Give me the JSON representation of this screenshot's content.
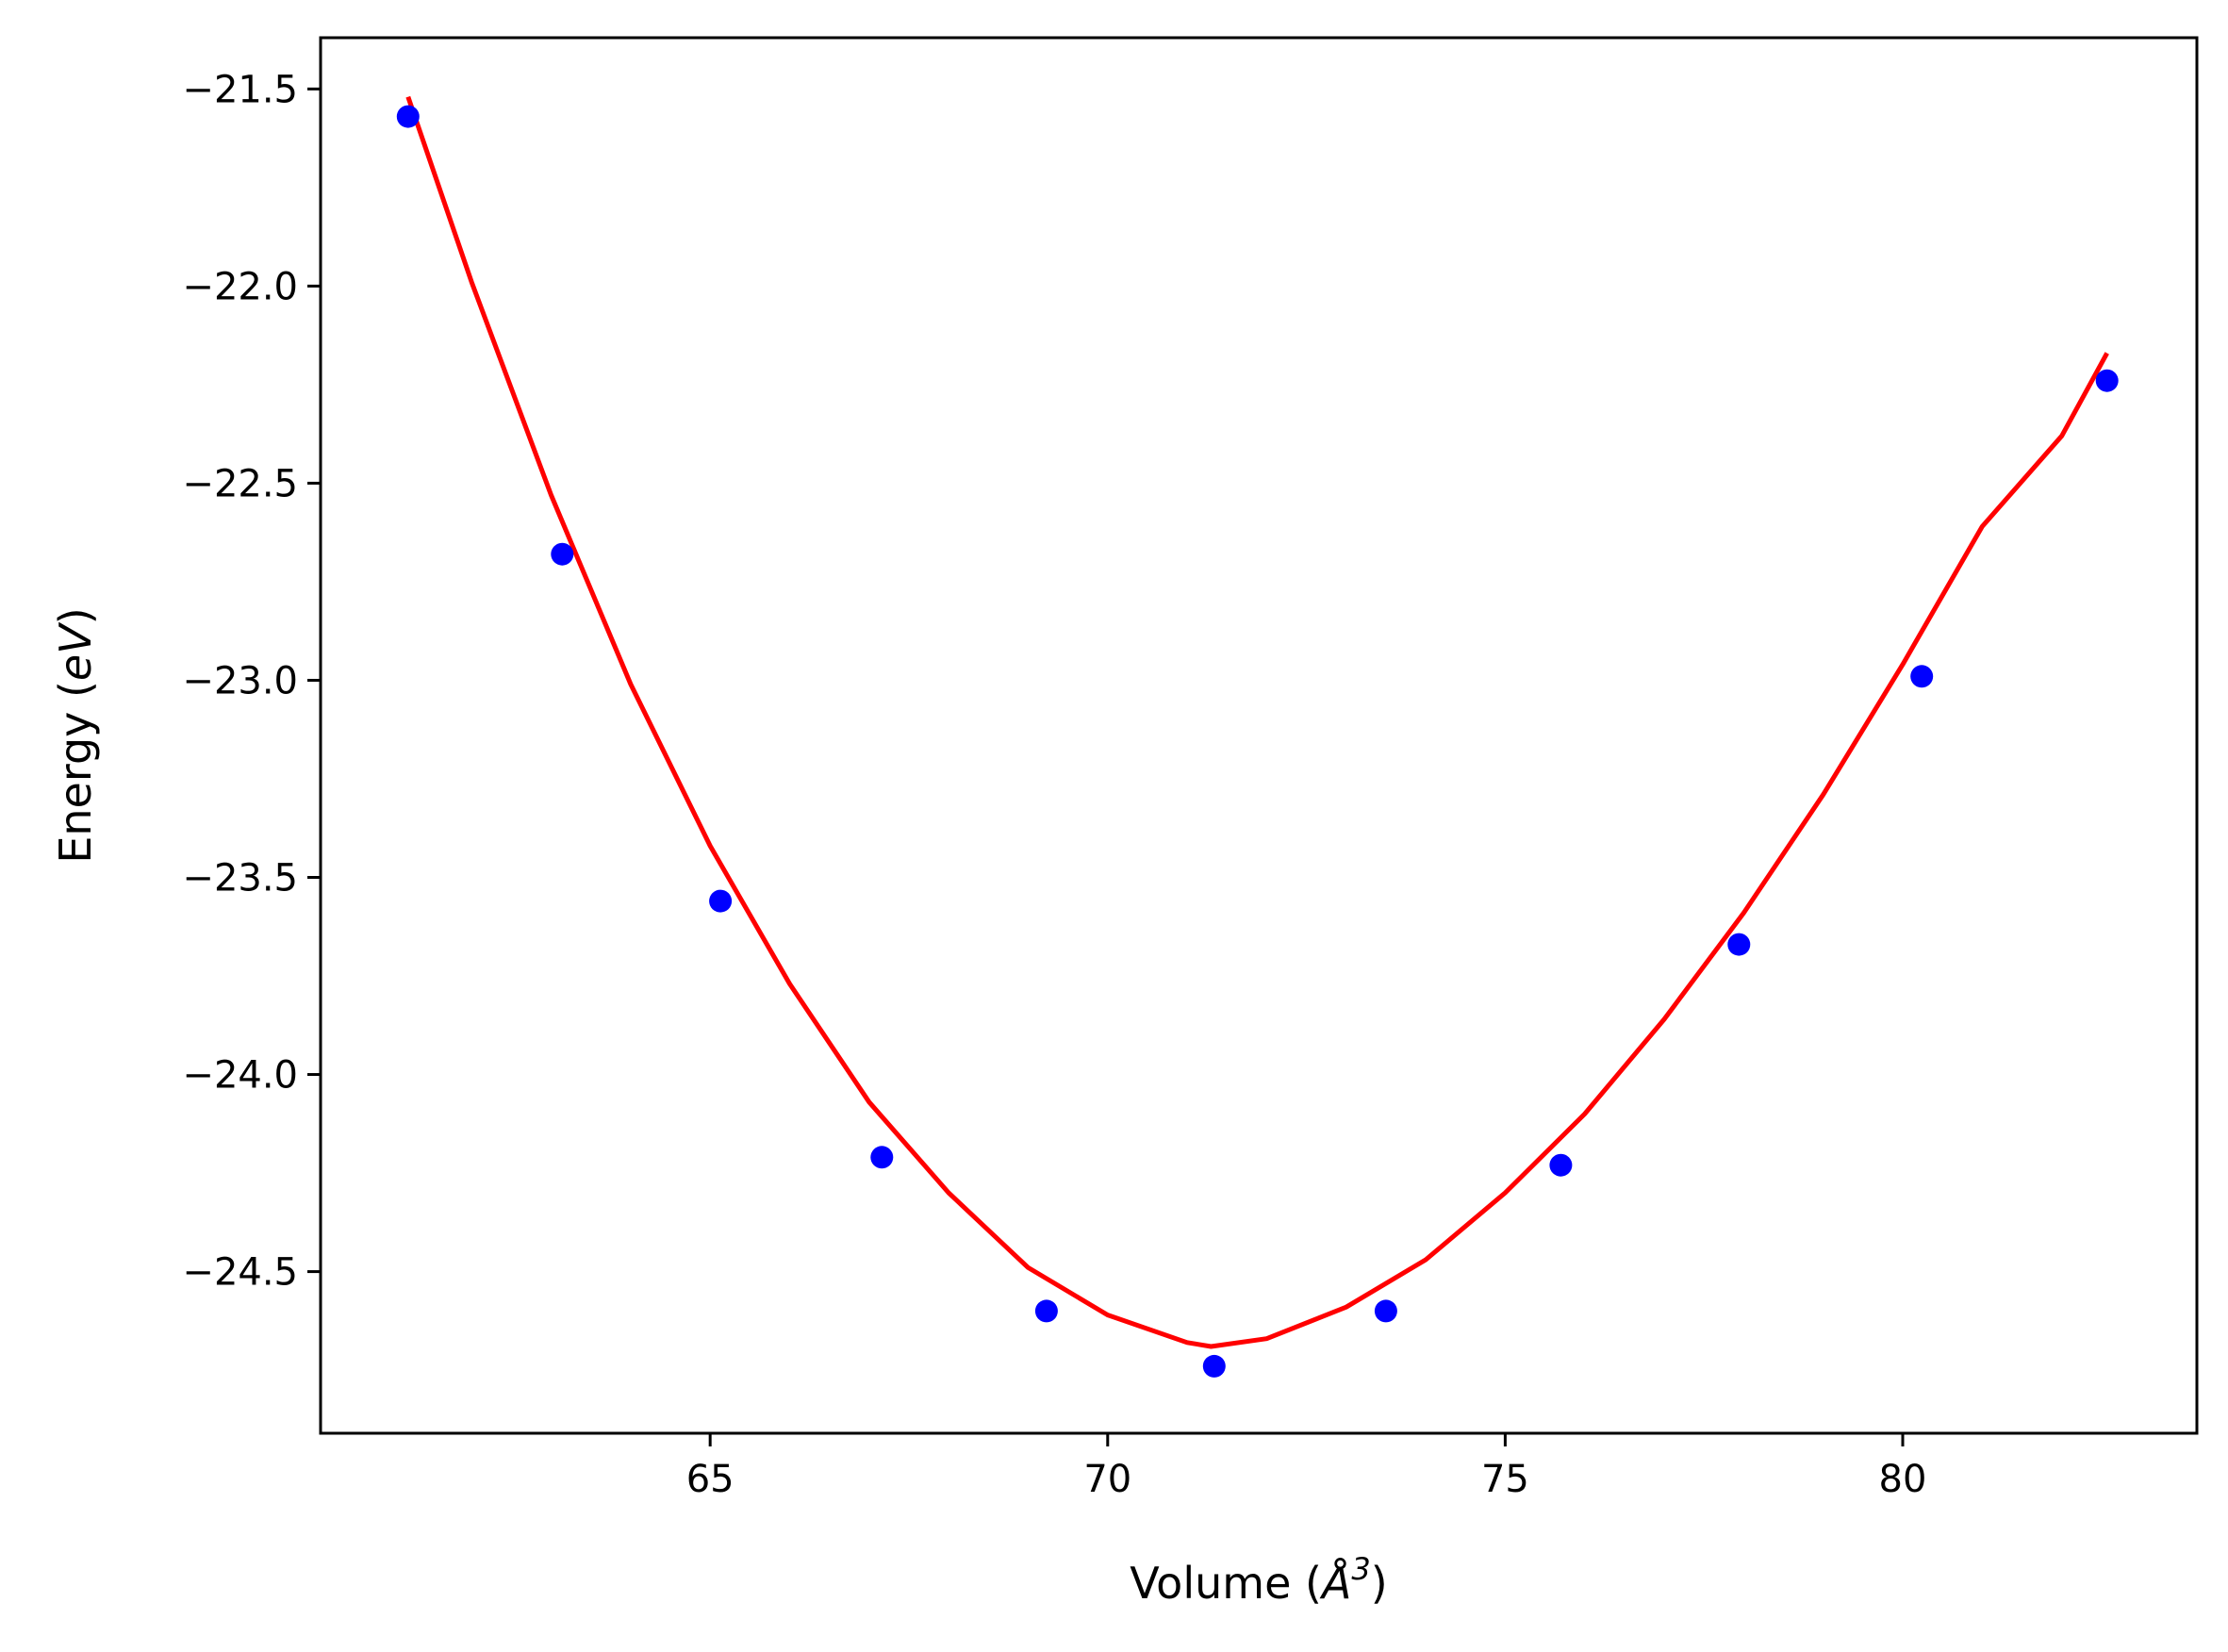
{
  "chart_data": {
    "type": "scatter",
    "xlabel": {
      "prefix": "Volume (",
      "symbol": "Å",
      "sup": "3",
      "suffix": ")"
    },
    "ylabel": {
      "prefix": "Energy (",
      "unit": "eV",
      "suffix": ")"
    },
    "xlim": [
      60.1,
      83.7
    ],
    "ylim": [
      -24.91,
      -21.37
    ],
    "xticks": [
      65,
      70,
      75,
      80
    ],
    "xtick_labels": [
      "65",
      "70",
      "75",
      "80"
    ],
    "yticks": [
      -21.5,
      -22.0,
      -22.5,
      -23.0,
      -23.5,
      -24.0,
      -24.5
    ],
    "ytick_labels": [
      "−21.5",
      "−22.0",
      "−22.5",
      "−23.0",
      "−23.5",
      "−24.0",
      "−24.5"
    ],
    "grid": false,
    "series": [
      {
        "kind": "points",
        "color": "#0000ff",
        "x": [
          61.2,
          63.14,
          65.13,
          67.16,
          69.23,
          71.34,
          73.5,
          75.7,
          77.94,
          80.24,
          82.57
        ],
        "y": [
          -21.57,
          -22.68,
          -23.56,
          -24.21,
          -24.6,
          -24.74,
          -24.6,
          -24.23,
          -23.67,
          -22.99,
          -22.24
        ]
      },
      {
        "kind": "fit",
        "color": "#ff0000",
        "x": [
          61.2,
          62.0,
          63.0,
          64.0,
          65.0,
          66.0,
          67.0,
          68.0,
          69.0,
          70.0,
          71.0,
          71.3,
          72.0,
          73.0,
          74.0,
          75.0,
          76.0,
          77.0,
          78.0,
          79.0,
          80.0,
          81.0,
          82.0,
          82.57
        ],
        "y": [
          -21.52,
          -21.99,
          -22.53,
          -23.01,
          -23.42,
          -23.77,
          -24.07,
          -24.3,
          -24.49,
          -24.61,
          -24.68,
          -24.69,
          -24.67,
          -24.59,
          -24.47,
          -24.3,
          -24.1,
          -23.86,
          -23.59,
          -23.29,
          -22.96,
          -22.61,
          -22.38,
          -22.17
        ]
      }
    ]
  }
}
